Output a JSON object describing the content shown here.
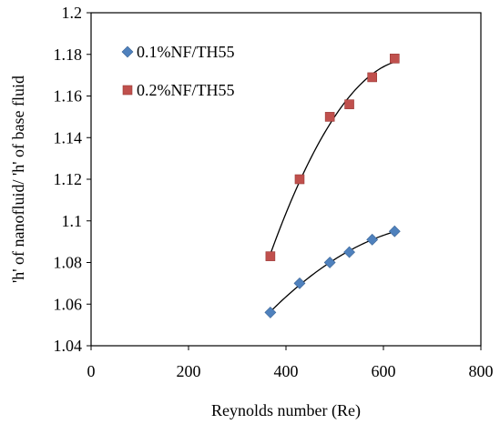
{
  "chart_data": {
    "type": "scatter",
    "xlabel": "Reynolds number (Re)",
    "ylabel": "'h' of nanofluid/ 'h' of base fluid",
    "xlim": [
      0,
      800
    ],
    "ylim": [
      1.04,
      1.2
    ],
    "xticks": [
      0,
      200,
      400,
      600,
      800
    ],
    "yticks": [
      1.04,
      1.06,
      1.08,
      1.1,
      1.12,
      1.14,
      1.16,
      1.18,
      1.2
    ],
    "xtick_labels": [
      "0",
      "200",
      "400",
      "600",
      "800"
    ],
    "ytick_labels": [
      "1.04",
      "1.06",
      "1.08",
      "1.1",
      "1.12",
      "1.14",
      "1.16",
      "1.18",
      "1.2"
    ],
    "grid": false,
    "legend_position": "top-left",
    "trendline": "polynomial",
    "series": [
      {
        "name": "0.1%NF/TH55",
        "marker": "diamond",
        "color": "#4F81BD",
        "x": [
          368,
          428,
          490,
          530,
          577,
          623
        ],
        "y": [
          1.056,
          1.07,
          1.08,
          1.085,
          1.091,
          1.095
        ]
      },
      {
        "name": "0.2%NF/TH55",
        "marker": "square",
        "color": "#C0504D",
        "x": [
          368,
          428,
          490,
          530,
          577,
          623
        ],
        "y": [
          1.083,
          1.12,
          1.15,
          1.156,
          1.169,
          1.178
        ]
      }
    ]
  }
}
